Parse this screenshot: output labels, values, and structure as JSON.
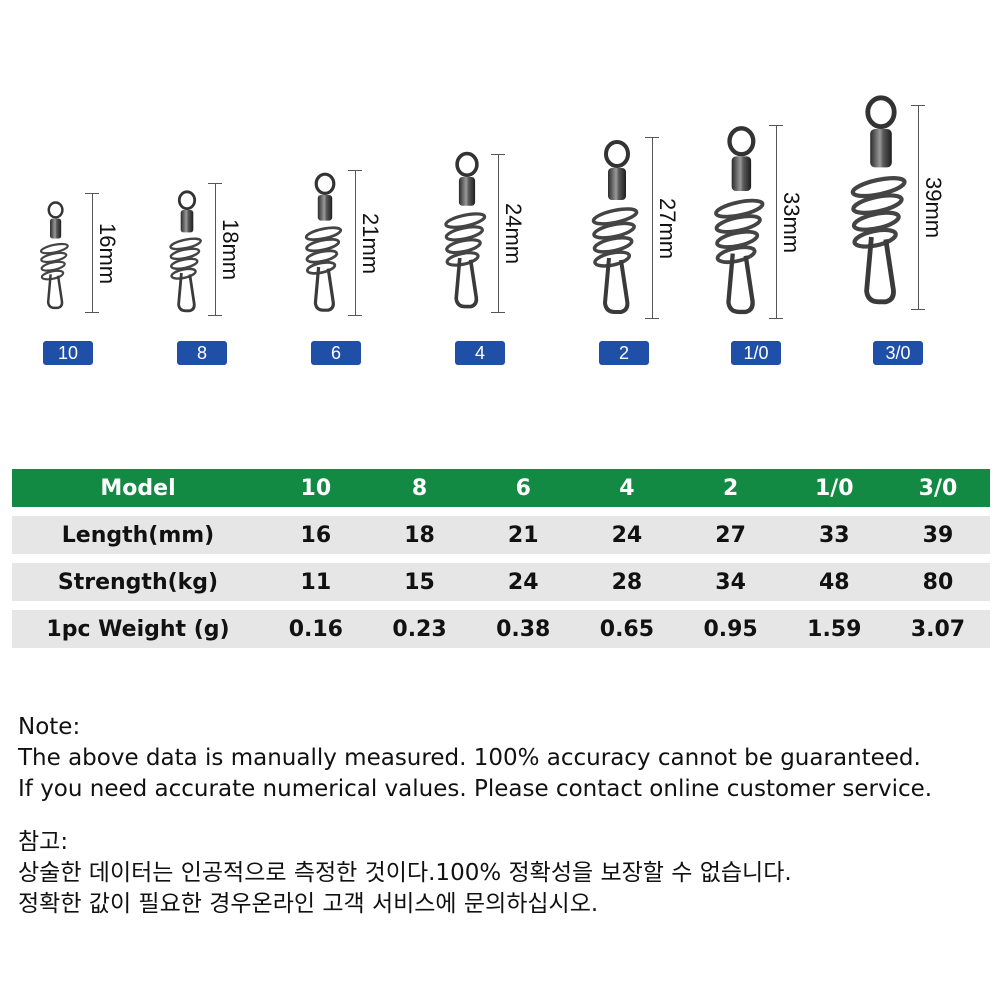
{
  "products": [
    {
      "model": "10",
      "length_label": "16mm"
    },
    {
      "model": "8",
      "length_label": "18mm"
    },
    {
      "model": "6",
      "length_label": "21mm"
    },
    {
      "model": "4",
      "length_label": "24mm"
    },
    {
      "model": "2",
      "length_label": "27mm"
    },
    {
      "model": "1/0",
      "length_label": "33mm"
    },
    {
      "model": "3/0",
      "length_label": "39mm"
    }
  ],
  "table": {
    "rows": [
      {
        "label": "Model",
        "values": [
          "10",
          "8",
          "6",
          "4",
          "2",
          "1/0",
          "3/0"
        ]
      },
      {
        "label": "Length(mm)",
        "values": [
          "16",
          "18",
          "21",
          "24",
          "27",
          "33",
          "39"
        ]
      },
      {
        "label": "Strength(kg)",
        "values": [
          "11",
          "15",
          "24",
          "28",
          "34",
          "48",
          "80"
        ]
      },
      {
        "label": "1pc Weight (g)",
        "values": [
          "0.16",
          "0.23",
          "0.38",
          "0.65",
          "0.95",
          "1.59",
          "3.07"
        ]
      }
    ]
  },
  "notes": {
    "en_title": "Note:",
    "en_line1": "The above data is manually measured. 100% accuracy cannot be guaranteed.",
    "en_line2": "If you need accurate numerical values. Please contact online customer service.",
    "ko_title": "참고:",
    "ko_line1": "상술한 데이터는 인공적으로 측정한 것이다.100% 정확성을 보장할 수 없습니다.",
    "ko_line2": "정확한 값이 필요한 경우온라인 고객 서비스에 문의하십시오."
  },
  "colors": {
    "header_green": "#138a43",
    "badge_blue": "#1f4fa6",
    "row_gray": "#e6e6e6"
  }
}
